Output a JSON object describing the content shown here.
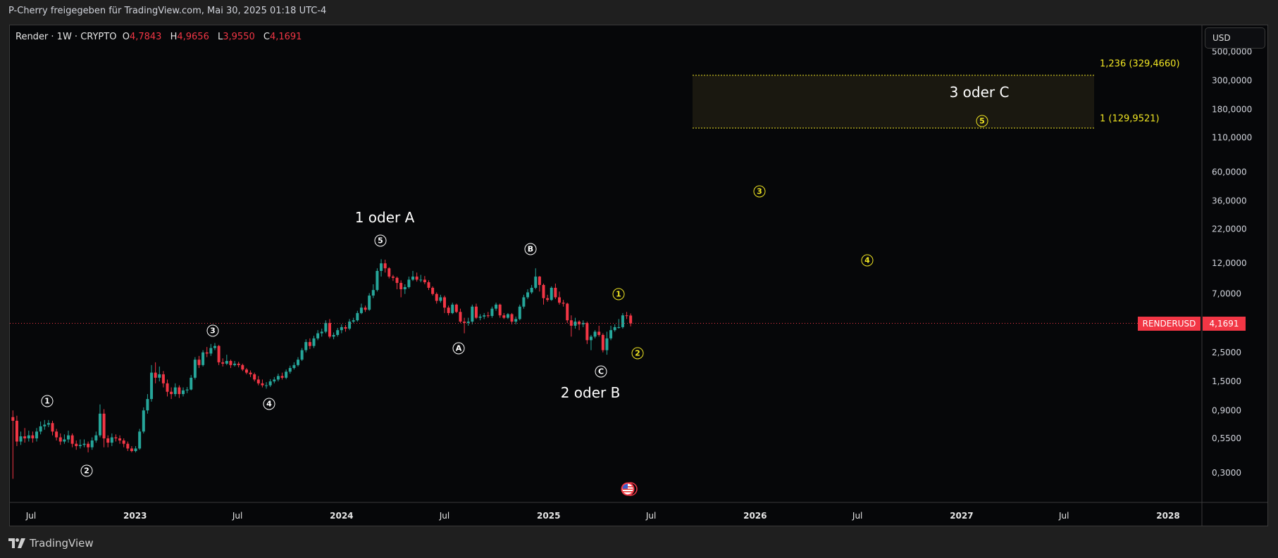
{
  "header": {
    "share_text": "P-Cherry freigegeben für TradingView.com, Mai 30, 2025 01:18 UTC-4"
  },
  "legend": {
    "symbol": "Render · 1W · CRYPTO",
    "o_label": "O",
    "o": "4,7843",
    "h_label": "H",
    "h": "4,9656",
    "l_label": "L",
    "l": "3,9550",
    "c_label": "C",
    "c": "4,1691"
  },
  "currency_button": "USD",
  "price_tag": {
    "symbol": "RENDERUSD",
    "value": "4,1691",
    "color": "#f23645"
  },
  "footer": {
    "brand": "TradingView"
  },
  "annotations": {
    "wave_white": [
      "1",
      "2",
      "3",
      "4",
      "5",
      "A",
      "B",
      "C"
    ],
    "wave_yellow": [
      "1",
      "2",
      "3",
      "4",
      "5"
    ],
    "labels": [
      "1 oder A",
      "2 oder B",
      "3 oder C"
    ],
    "fib": [
      "1,236 (329,4660)",
      "1 (129,9521)"
    ]
  },
  "colors": {
    "up": "#26a69a",
    "down": "#f23645",
    "background": "#060709",
    "fib": "#f0e523",
    "wave": "#ffffff"
  },
  "icons": {
    "event": "us-flag-icon",
    "logo": "tradingview-logo-icon"
  },
  "chart_data": {
    "type": "candlestick",
    "interval": "1W",
    "first_week": "2022-05-30",
    "y_scale": "log",
    "ylim": [
      0.22,
      600
    ],
    "y_ticks": [
      {
        "v": 500,
        "t": "500,0000"
      },
      {
        "v": 300,
        "t": "300,0000"
      },
      {
        "v": 180,
        "t": "180,0000"
      },
      {
        "v": 110,
        "t": "110,0000"
      },
      {
        "v": 60,
        "t": "60,0000"
      },
      {
        "v": 36,
        "t": "36,0000"
      },
      {
        "v": 22,
        "t": "22,0000"
      },
      {
        "v": 12,
        "t": "12,0000"
      },
      {
        "v": 7,
        "t": "7,0000"
      },
      {
        "v": 2.5,
        "t": "2,5000"
      },
      {
        "v": 1.5,
        "t": "1,5000"
      },
      {
        "v": 0.9,
        "t": "0,9000"
      },
      {
        "v": 0.55,
        "t": "0,5500"
      },
      {
        "v": 0.3,
        "t": "0,3000"
      }
    ],
    "x_ticks": [
      {
        "d": "2022-07-01",
        "t": "Jul",
        "bold": false
      },
      {
        "d": "2023-01-01",
        "t": "2023",
        "bold": true
      },
      {
        "d": "2023-07-01",
        "t": "Jul",
        "bold": false
      },
      {
        "d": "2024-01-01",
        "t": "2024",
        "bold": true
      },
      {
        "d": "2024-07-01",
        "t": "Jul",
        "bold": false
      },
      {
        "d": "2025-01-01",
        "t": "2025",
        "bold": true
      },
      {
        "d": "2025-07-01",
        "t": "Jul",
        "bold": false
      },
      {
        "d": "2026-01-01",
        "t": "2026",
        "bold": true
      },
      {
        "d": "2026-07-01",
        "t": "Jul",
        "bold": false
      },
      {
        "d": "2027-01-01",
        "t": "2027",
        "bold": true
      },
      {
        "d": "2027-07-01",
        "t": "Jul",
        "bold": false
      },
      {
        "d": "2028-01-01",
        "t": "2028",
        "bold": true
      }
    ],
    "last_price": 4.1691,
    "fib_zone": [
      129.9521,
      329.466
    ],
    "candles": [
      [
        0.8,
        0.9,
        0.27,
        0.75
      ],
      [
        0.75,
        0.82,
        0.48,
        0.52
      ],
      [
        0.52,
        0.62,
        0.49,
        0.57
      ],
      [
        0.57,
        0.66,
        0.51,
        0.55
      ],
      [
        0.55,
        0.63,
        0.52,
        0.58
      ],
      [
        0.58,
        0.62,
        0.51,
        0.55
      ],
      [
        0.55,
        0.66,
        0.52,
        0.62
      ],
      [
        0.62,
        0.74,
        0.59,
        0.68
      ],
      [
        0.68,
        0.76,
        0.64,
        0.7
      ],
      [
        0.7,
        0.76,
        0.67,
        0.72
      ],
      [
        0.72,
        0.75,
        0.58,
        0.62
      ],
      [
        0.62,
        0.65,
        0.53,
        0.56
      ],
      [
        0.56,
        0.6,
        0.49,
        0.52
      ],
      [
        0.52,
        0.59,
        0.5,
        0.54
      ],
      [
        0.54,
        0.63,
        0.51,
        0.58
      ],
      [
        0.58,
        0.6,
        0.47,
        0.5
      ],
      [
        0.5,
        0.53,
        0.45,
        0.48
      ],
      [
        0.48,
        0.54,
        0.46,
        0.49
      ],
      [
        0.49,
        0.54,
        0.47,
        0.5
      ],
      [
        0.5,
        0.52,
        0.43,
        0.47
      ],
      [
        0.47,
        0.56,
        0.45,
        0.53
      ],
      [
        0.53,
        0.62,
        0.51,
        0.58
      ],
      [
        0.58,
        1.0,
        0.56,
        0.85
      ],
      [
        0.85,
        0.92,
        0.47,
        0.55
      ],
      [
        0.55,
        0.58,
        0.47,
        0.51
      ],
      [
        0.51,
        0.6,
        0.48,
        0.56
      ],
      [
        0.56,
        0.59,
        0.52,
        0.55
      ],
      [
        0.55,
        0.58,
        0.5,
        0.53
      ],
      [
        0.53,
        0.55,
        0.47,
        0.5
      ],
      [
        0.5,
        0.52,
        0.44,
        0.46
      ],
      [
        0.46,
        0.48,
        0.43,
        0.44
      ],
      [
        0.44,
        0.48,
        0.43,
        0.46
      ],
      [
        0.46,
        0.65,
        0.45,
        0.62
      ],
      [
        0.62,
        0.95,
        0.6,
        0.9
      ],
      [
        0.9,
        1.2,
        0.85,
        1.1
      ],
      [
        1.1,
        2.0,
        1.05,
        1.75
      ],
      [
        1.75,
        2.1,
        1.45,
        1.6
      ],
      [
        1.6,
        1.95,
        1.5,
        1.7
      ],
      [
        1.7,
        1.8,
        1.35,
        1.45
      ],
      [
        1.45,
        1.55,
        1.15,
        1.25
      ],
      [
        1.25,
        1.35,
        1.1,
        1.2
      ],
      [
        1.2,
        1.45,
        1.15,
        1.35
      ],
      [
        1.35,
        1.4,
        1.12,
        1.2
      ],
      [
        1.2,
        1.35,
        1.15,
        1.28
      ],
      [
        1.28,
        1.36,
        1.22,
        1.3
      ],
      [
        1.3,
        1.68,
        1.28,
        1.6
      ],
      [
        1.6,
        2.3,
        1.55,
        2.2
      ],
      [
        2.2,
        2.35,
        1.9,
        2.0
      ],
      [
        2.0,
        2.6,
        1.95,
        2.5
      ],
      [
        2.5,
        2.75,
        2.3,
        2.45
      ],
      [
        2.45,
        2.9,
        2.35,
        2.7
      ],
      [
        2.7,
        2.95,
        2.6,
        2.8
      ],
      [
        2.8,
        2.85,
        2.0,
        2.1
      ],
      [
        2.1,
        2.25,
        1.95,
        2.05
      ],
      [
        2.05,
        2.4,
        2.0,
        2.15
      ],
      [
        2.15,
        2.2,
        1.9,
        2.0
      ],
      [
        2.0,
        2.15,
        1.95,
        2.05
      ],
      [
        2.05,
        2.12,
        1.92,
        2.0
      ],
      [
        2.0,
        2.05,
        1.8,
        1.85
      ],
      [
        1.85,
        1.9,
        1.7,
        1.75
      ],
      [
        1.75,
        1.82,
        1.62,
        1.7
      ],
      [
        1.7,
        1.75,
        1.5,
        1.55
      ],
      [
        1.55,
        1.65,
        1.4,
        1.45
      ],
      [
        1.45,
        1.55,
        1.35,
        1.4
      ],
      [
        1.4,
        1.48,
        1.32,
        1.4
      ],
      [
        1.4,
        1.56,
        1.36,
        1.5
      ],
      [
        1.5,
        1.62,
        1.45,
        1.55
      ],
      [
        1.55,
        1.72,
        1.5,
        1.65
      ],
      [
        1.65,
        1.75,
        1.55,
        1.6
      ],
      [
        1.6,
        1.85,
        1.56,
        1.78
      ],
      [
        1.78,
        1.98,
        1.72,
        1.9
      ],
      [
        1.9,
        2.1,
        1.85,
        2.0
      ],
      [
        2.0,
        2.3,
        1.95,
        2.2
      ],
      [
        2.2,
        2.7,
        2.15,
        2.6
      ],
      [
        2.6,
        3.15,
        2.5,
        3.0
      ],
      [
        3.0,
        3.2,
        2.65,
        2.8
      ],
      [
        2.8,
        3.35,
        2.7,
        3.2
      ],
      [
        3.2,
        3.7,
        3.1,
        3.5
      ],
      [
        3.5,
        3.8,
        3.3,
        3.6
      ],
      [
        3.6,
        4.4,
        3.5,
        4.2
      ],
      [
        4.2,
        4.5,
        3.2,
        3.3
      ],
      [
        3.3,
        3.55,
        3.15,
        3.4
      ],
      [
        3.4,
        3.85,
        3.3,
        3.7
      ],
      [
        3.7,
        4.1,
        3.5,
        3.9
      ],
      [
        3.9,
        4.05,
        3.6,
        3.8
      ],
      [
        3.8,
        4.5,
        3.7,
        4.3
      ],
      [
        4.3,
        4.6,
        4.2,
        4.4
      ],
      [
        4.4,
        5.2,
        4.3,
        5.0
      ],
      [
        5.0,
        5.9,
        4.9,
        5.5
      ],
      [
        5.5,
        5.7,
        5.1,
        5.3
      ],
      [
        5.3,
        7.1,
        5.2,
        6.8
      ],
      [
        6.8,
        8.3,
        6.5,
        7.5
      ],
      [
        7.5,
        11.0,
        7.3,
        10.5
      ],
      [
        10.5,
        12.9,
        9.5,
        12.0
      ],
      [
        12.0,
        12.8,
        10.2,
        11.0
      ],
      [
        11.0,
        11.2,
        9.2,
        9.5
      ],
      [
        9.5,
        9.8,
        8.8,
        9.3
      ],
      [
        9.3,
        9.5,
        7.6,
        8.5
      ],
      [
        8.5,
        8.9,
        6.6,
        7.6
      ],
      [
        7.6,
        8.3,
        7.0,
        7.9
      ],
      [
        7.9,
        9.5,
        7.7,
        9.0
      ],
      [
        9.0,
        10.5,
        8.8,
        9.5
      ],
      [
        9.5,
        10.2,
        8.7,
        9.0
      ],
      [
        9.0,
        9.8,
        8.6,
        9.0
      ],
      [
        9.0,
        9.6,
        8.3,
        8.6
      ],
      [
        8.6,
        8.9,
        7.5,
        7.8
      ],
      [
        7.8,
        8.0,
        6.8,
        7.0
      ],
      [
        7.0,
        7.2,
        5.9,
        6.2
      ],
      [
        6.2,
        6.9,
        6.0,
        6.6
      ],
      [
        6.6,
        6.8,
        5.0,
        5.5
      ],
      [
        5.5,
        5.7,
        4.8,
        5.0
      ],
      [
        5.0,
        6.0,
        4.9,
        5.8
      ],
      [
        5.8,
        5.9,
        5.0,
        5.1
      ],
      [
        5.1,
        5.4,
        4.2,
        4.3
      ],
      [
        4.3,
        4.6,
        3.5,
        4.2
      ],
      [
        4.2,
        4.6,
        4.0,
        4.3
      ],
      [
        4.3,
        5.8,
        4.1,
        5.6
      ],
      [
        5.6,
        5.9,
        4.5,
        4.6
      ],
      [
        4.6,
        4.9,
        4.4,
        4.7
      ],
      [
        4.7,
        5.0,
        4.5,
        4.8
      ],
      [
        4.8,
        5.1,
        4.6,
        4.75
      ],
      [
        4.75,
        5.6,
        4.6,
        5.4
      ],
      [
        5.4,
        6.0,
        5.2,
        5.8
      ],
      [
        5.8,
        5.9,
        4.6,
        4.8
      ],
      [
        4.8,
        5.0,
        4.5,
        4.6
      ],
      [
        4.6,
        5.0,
        4.5,
        4.9
      ],
      [
        4.9,
        5.0,
        4.1,
        4.3
      ],
      [
        4.3,
        4.7,
        4.1,
        4.5
      ],
      [
        4.5,
        5.8,
        4.4,
        5.6
      ],
      [
        5.6,
        6.9,
        5.4,
        6.6
      ],
      [
        6.6,
        7.6,
        6.4,
        7.2
      ],
      [
        7.2,
        8.2,
        7.0,
        7.8
      ],
      [
        7.8,
        11.0,
        7.6,
        9.5
      ],
      [
        9.5,
        9.6,
        7.3,
        8.2
      ],
      [
        8.2,
        8.4,
        5.8,
        6.5
      ],
      [
        6.5,
        6.9,
        6.1,
        6.3
      ],
      [
        6.3,
        8.0,
        6.2,
        7.8
      ],
      [
        7.8,
        8.4,
        6.4,
        6.6
      ],
      [
        6.6,
        7.3,
        5.8,
        6.0
      ],
      [
        6.0,
        6.3,
        5.6,
        5.9
      ],
      [
        5.9,
        6.0,
        4.2,
        4.4
      ],
      [
        4.4,
        4.8,
        3.3,
        4.0
      ],
      [
        4.0,
        4.6,
        3.8,
        4.3
      ],
      [
        4.3,
        4.4,
        3.7,
        4.1
      ],
      [
        4.1,
        4.4,
        3.9,
        4.2
      ],
      [
        4.2,
        4.3,
        2.9,
        3.1
      ],
      [
        3.1,
        3.4,
        2.6,
        3.3
      ],
      [
        3.3,
        3.7,
        3.2,
        3.6
      ],
      [
        3.6,
        4.0,
        3.3,
        3.4
      ],
      [
        3.4,
        3.5,
        2.5,
        2.6
      ],
      [
        2.6,
        3.6,
        2.4,
        3.2
      ],
      [
        3.2,
        4.0,
        3.1,
        3.7
      ],
      [
        3.7,
        4.1,
        3.6,
        3.9
      ],
      [
        3.9,
        4.5,
        3.8,
        3.9
      ],
      [
        3.9,
        5.0,
        3.8,
        4.8
      ],
      [
        4.8,
        5.1,
        4.5,
        4.7843
      ],
      [
        4.7843,
        4.9656,
        3.955,
        4.1691
      ]
    ]
  }
}
